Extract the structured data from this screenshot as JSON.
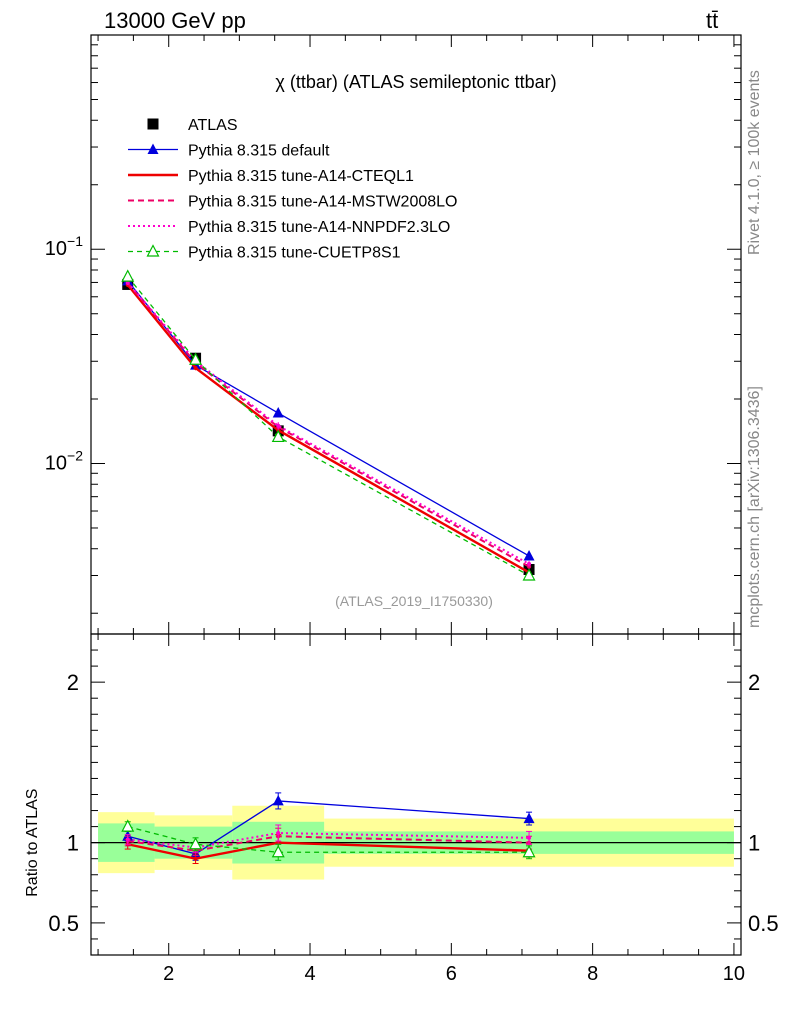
{
  "header": {
    "energy_label": "13000 GeV pp",
    "process_label": "tt̄"
  },
  "side_labels": {
    "rivet": "Rivet 4.1.0, ≥ 100k events",
    "site": "mcplots.cern.ch [arXiv:1306.3436]"
  },
  "chart_data": {
    "type": "line",
    "title": "χ (ttbar) (ATLAS semileptonic ttbar)",
    "analysis_id": "(ATLAS_2019_I1750330)",
    "xlim": [
      0.9,
      10.1
    ],
    "x_ticks": [
      2,
      4,
      6,
      8,
      10
    ],
    "main": {
      "yscale": "log",
      "ylim": [
        0.0016,
        1.0
      ],
      "y_tick_labels": [
        {
          "value": 0.1,
          "base": "10",
          "exp": "−1"
        },
        {
          "value": 0.01,
          "base": "10",
          "exp": "−2"
        }
      ]
    },
    "ratio": {
      "ylabel": "Ratio to ATLAS",
      "ylim": [
        0.3,
        2.3
      ],
      "y_ticks": [
        0.5,
        1,
        2
      ]
    },
    "data": {
      "name": "ATLAS",
      "x": [
        1.42,
        2.38,
        3.55,
        7.1
      ],
      "xlo": [
        1.0,
        1.8,
        2.9,
        4.2
      ],
      "xhi": [
        1.8,
        2.9,
        4.2,
        10.0
      ],
      "y": [
        0.0685,
        0.031,
        0.0142,
        0.0032
      ],
      "band_inner": [
        0.12,
        0.1,
        0.13,
        0.07
      ],
      "band_outer": [
        0.19,
        0.17,
        0.23,
        0.15
      ]
    },
    "series": [
      {
        "name": "Pythia 8.315 default",
        "color": "#0000dd",
        "dash": "",
        "width": 1.3,
        "marker": "triangle",
        "y": [
          0.0712,
          0.0288,
          0.0172,
          0.0037
        ],
        "ratio": [
          1.04,
          0.93,
          1.26,
          1.15
        ],
        "err": [
          0.03,
          0.04,
          0.05,
          0.04
        ]
      },
      {
        "name": "Pythia 8.315 tune-A14-CTEQL1",
        "color": "#ee0000",
        "dash": "",
        "width": 2.4,
        "marker": "dot",
        "y": [
          0.0682,
          0.0279,
          0.0143,
          0.0031
        ],
        "ratio": [
          0.99,
          0.9,
          1.0,
          0.95
        ],
        "err": [
          0.03,
          0.03,
          0.05,
          0.04
        ]
      },
      {
        "name": "Pythia 8.315 tune-A14-MSTW2008LO",
        "color": "#ee0066",
        "dash": "6,4",
        "width": 2.0,
        "marker": "dot",
        "y": [
          0.0695,
          0.0295,
          0.0148,
          0.0033
        ],
        "ratio": [
          1.01,
          0.95,
          1.04,
          1.0
        ],
        "err": [
          0.03,
          0.03,
          0.05,
          0.04
        ]
      },
      {
        "name": "Pythia 8.315 tune-A14-NNPDF2.3LO",
        "color": "#ff00cc",
        "dash": "2,3",
        "width": 2.0,
        "marker": "dot",
        "y": [
          0.0698,
          0.0301,
          0.015,
          0.0034
        ],
        "ratio": [
          1.02,
          0.97,
          1.06,
          1.03
        ],
        "err": [
          0.03,
          0.03,
          0.05,
          0.04
        ]
      },
      {
        "name": "Pythia 8.315 tune-CUETP8S1",
        "color": "#00bb00",
        "dash": "5,4",
        "width": 1.3,
        "marker": "open-triangle",
        "y": [
          0.0745,
          0.0305,
          0.0133,
          0.003
        ],
        "ratio": [
          1.1,
          0.99,
          0.94,
          0.94
        ],
        "err": [
          0.03,
          0.04,
          0.05,
          0.04
        ]
      }
    ]
  }
}
